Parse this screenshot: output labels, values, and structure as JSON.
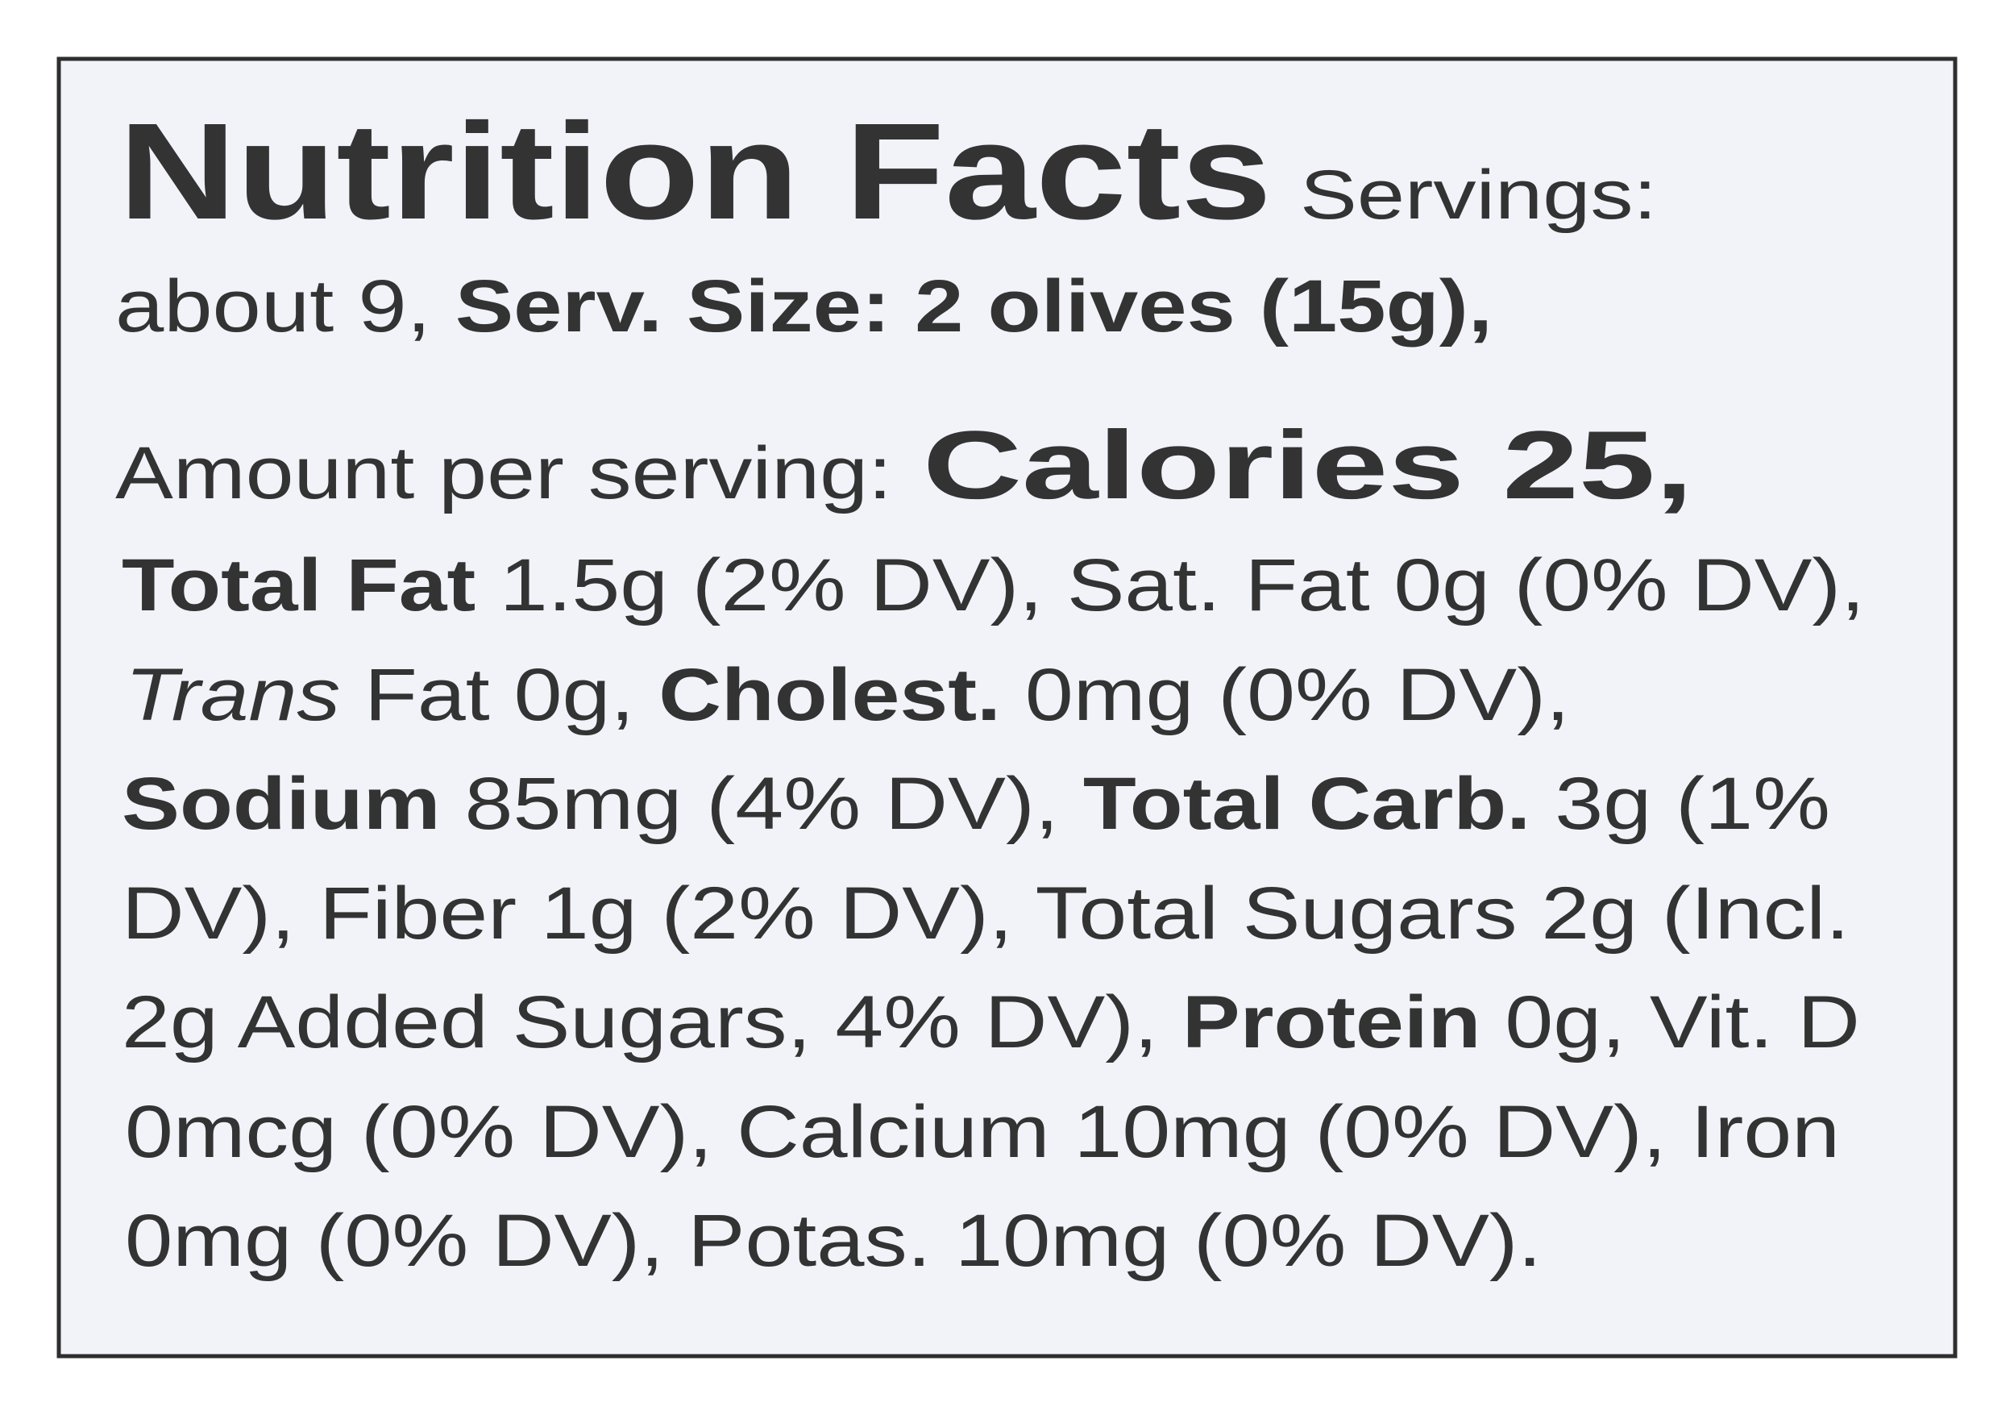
{
  "header": {
    "title": "Nutrition Facts",
    "servings_label": "Servings:"
  },
  "lines": [
    [
      "about 9,",
      "Serv. Size: 2 olives (15g),"
    ],
    [
      "Amount per serving:",
      "Calories 25,"
    ],
    [
      "Total Fat",
      "1.5g (2% DV), Sat. Fat 0g (0% DV),"
    ],
    [
      "Trans",
      "Fat 0g,",
      "Cholest.",
      "0mg (0% DV),"
    ],
    [
      "Sodium",
      "85mg (4% DV),",
      "Total Carb.",
      "3g (1%"
    ],
    [
      "DV), Fiber 1g (2% DV), Total Sugars 2g (Incl."
    ],
    [
      "2g Added Sugars, 4% DV),",
      "Protein",
      "0g, Vit. D"
    ],
    [
      "0mcg (0% DV), Calcium 10mg (0% DV), Iron"
    ],
    [
      "0mg (0% DV), Potas. 10mg (0% DV)."
    ]
  ]
}
